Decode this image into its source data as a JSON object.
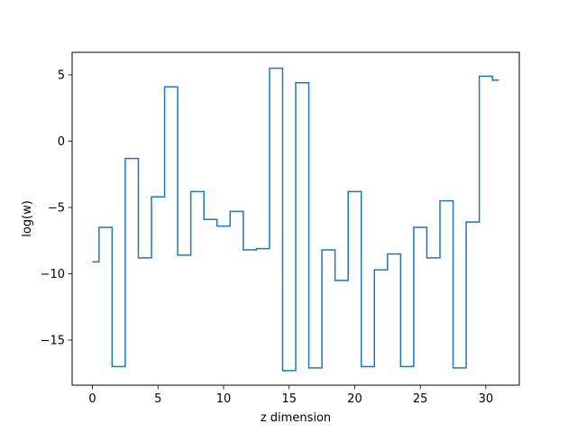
{
  "chart_data": {
    "type": "line",
    "drawstyle": "steps-mid",
    "title": "",
    "xlabel": "z dimension",
    "ylabel": "log(w)",
    "xlim": [
      -1.55,
      32.55
    ],
    "ylim": [
      -18.4,
      6.7
    ],
    "grid": false,
    "legend": "none",
    "x_ticks": [
      0,
      5,
      10,
      15,
      20,
      25,
      30
    ],
    "y_ticks": [
      5,
      0,
      -5,
      -10,
      -15
    ],
    "y_tick_labels": [
      "5",
      "0",
      "−5",
      "−10",
      "−15"
    ],
    "x": [
      0,
      1,
      2,
      3,
      4,
      5,
      6,
      7,
      8,
      9,
      10,
      11,
      12,
      13,
      14,
      15,
      16,
      17,
      18,
      19,
      20,
      21,
      22,
      23,
      24,
      25,
      26,
      27,
      28,
      29,
      30,
      31
    ],
    "series": [
      {
        "color": "#1f77b4",
        "values": [
          -9.1,
          -6.5,
          -17.0,
          -1.3,
          -8.8,
          -4.2,
          4.1,
          -8.6,
          -3.8,
          -5.9,
          -6.4,
          -5.3,
          -8.2,
          -8.1,
          5.5,
          -17.3,
          4.4,
          -17.1,
          -8.2,
          -10.5,
          -3.8,
          -17.0,
          -9.7,
          -8.5,
          -17.0,
          -6.5,
          -8.8,
          -4.5,
          -17.1,
          -6.1,
          4.9,
          4.6
        ]
      }
    ]
  }
}
